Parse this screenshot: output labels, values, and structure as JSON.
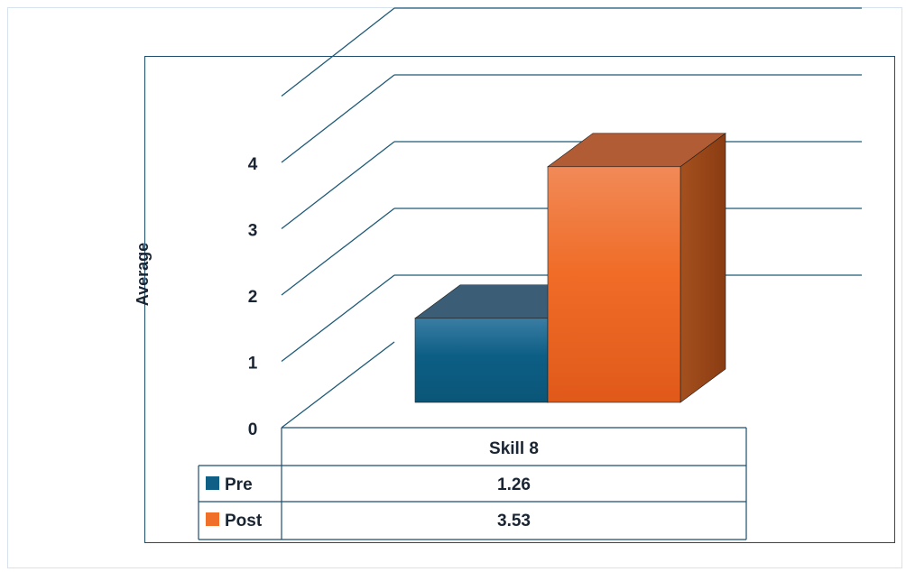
{
  "chart_data": {
    "type": "bar",
    "style": "3d-clustered-column-with-data-table",
    "title": "",
    "xlabel": "",
    "ylabel": "Average",
    "ylim": [
      0,
      5
    ],
    "yticks": [
      "0",
      "1",
      "2",
      "3",
      "4"
    ],
    "categories": [
      "Skill 8"
    ],
    "series": [
      {
        "name": "Pre",
        "values": [
          1.26
        ],
        "value_labels": [
          "1.26"
        ],
        "color": "#0f5f86"
      },
      {
        "name": "Post",
        "values": [
          3.53
        ],
        "value_labels": [
          "3.53"
        ],
        "color": "#f0702a"
      }
    ],
    "grid": true,
    "legend": "data-table"
  },
  "colors": {
    "axis_line": "#1e5a78",
    "text": "#1a2533",
    "frame": "#1e4e6e"
  }
}
